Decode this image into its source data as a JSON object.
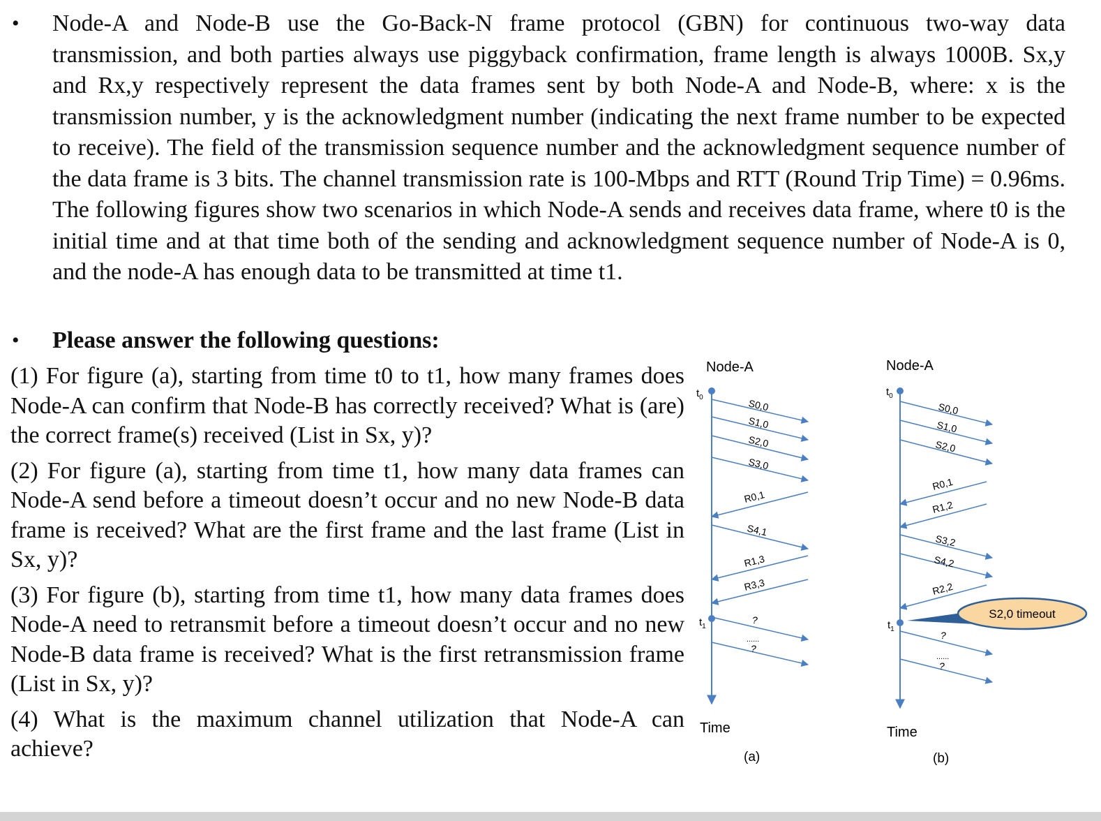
{
  "intro": {
    "bullet": "•",
    "text": "Node-A and Node-B use the Go-Back-N frame protocol (GBN) for continuous two-way data transmission, and both parties always use piggyback confirmation, frame length is always 1000B. Sx,y and Rx,y respectively represent the data frames sent by both Node-A and Node-B, where: x is the transmission number, y is the acknowledgment number (indicating the next frame number to be expected to receive). The field of the transmission sequence number and the acknowledgment sequence number of the data frame is 3 bits. The channel transmission rate is 100-Mbps and RTT (Round Trip Time) = 0.96ms. The following figures show two scenarios in which Node-A sends and receives data frame, where t0 is the  initial time and at that time both of the sending and acknowledgment sequence number of Node-A is 0, and the node-A has enough data to be transmitted at time t1."
  },
  "questions_heading": {
    "bullet": "•",
    "text": "Please answer the following questions:"
  },
  "questions": [
    "(1) For figure (a), starting from time t0 to t1, how many frames does Node-A can confirm that Node-B has correctly received? What is (are) the correct frame(s) received (List in Sx, y)?",
    "(2) For figure (a), starting from time t1, how many data frames can Node-A send before a timeout doesn’t occur and no new Node-B data frame is received? What are the first frame and the last frame (List in Sx, y)?",
    "(3) For figure (b), starting from time t1, how many data frames does Node-A need to retransmit before a timeout doesn’t occur and no new Node-B data frame is received? What is the first retransmission frame (List in Sx, y)?",
    "(4) What is the maximum channel utilization that Node-A can achieve?"
  ],
  "figure_a": {
    "node_label": "Node-A",
    "t0": "t",
    "t0_sub": "0",
    "t1": "t",
    "t1_sub": "1",
    "frames": [
      "S0,0",
      "S1,0",
      "S2,0",
      "S3,0",
      "R0,1",
      "S4,1",
      "R1,3",
      "R3,3",
      "?",
      "......",
      "?"
    ],
    "time_label": "Time",
    "caption": "(a)"
  },
  "figure_b": {
    "node_label": "Node-A",
    "t0": "t",
    "t0_sub": "0",
    "t1": "t",
    "t1_sub": "1",
    "frames": [
      "S0,0",
      "S1,0",
      "S2,0",
      "R0,1",
      "R1,2",
      "S3,2",
      "S4,2",
      "R2,2",
      "?",
      "......",
      "?"
    ],
    "callout": "S2,0 timeout",
    "time_label": "Time",
    "caption": "(b)"
  },
  "colors": {
    "arrow": "#4a7fc1",
    "callout_fill": "#fad7a0",
    "callout_stroke": "#2e5f99"
  }
}
